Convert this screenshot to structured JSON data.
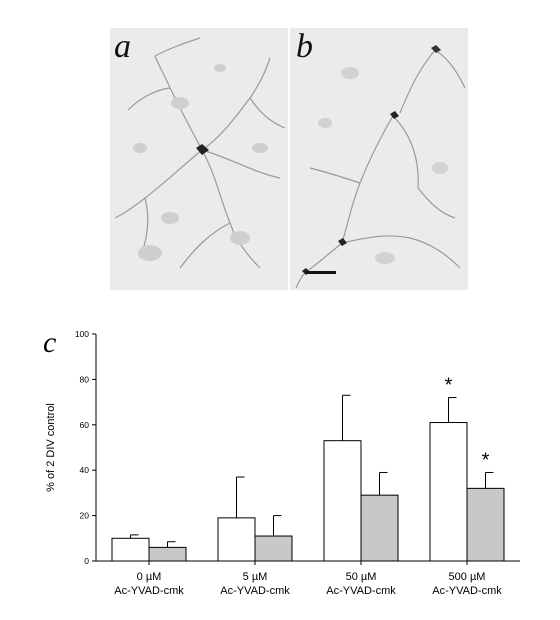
{
  "figure": {
    "panels": [
      {
        "letter": "a",
        "kind": "micrograph"
      },
      {
        "letter": "b",
        "kind": "micrograph",
        "has_scale_bar": true
      }
    ],
    "chart_letter": "c"
  },
  "chart_data": {
    "type": "bar",
    "ylabel": "% of 2 DIV control",
    "ylim": [
      0,
      100
    ],
    "yticks": [
      0,
      20,
      40,
      60,
      80,
      100
    ],
    "categories": [
      {
        "line1": "0 µM",
        "line2": "Ac-YVAD-cmk"
      },
      {
        "line1": "5 µM",
        "line2": "Ac-YVAD-cmk"
      },
      {
        "line1": "50 µM",
        "line2": "Ac-YVAD-cmk"
      },
      {
        "line1": "500 µM",
        "line2": "Ac-YVAD-cmk"
      }
    ],
    "series": [
      {
        "fill": "#ffffff",
        "values": [
          10,
          19,
          53,
          61
        ],
        "errors": [
          1.5,
          18,
          20,
          11
        ],
        "significance": [
          "",
          "",
          "",
          "*"
        ]
      },
      {
        "fill": "#c8c8c8",
        "values": [
          6,
          11,
          29,
          32
        ],
        "errors": [
          2.5,
          9,
          10,
          7
        ],
        "significance": [
          "",
          "",
          "",
          "*"
        ]
      }
    ],
    "grid": false,
    "legend": "none"
  }
}
